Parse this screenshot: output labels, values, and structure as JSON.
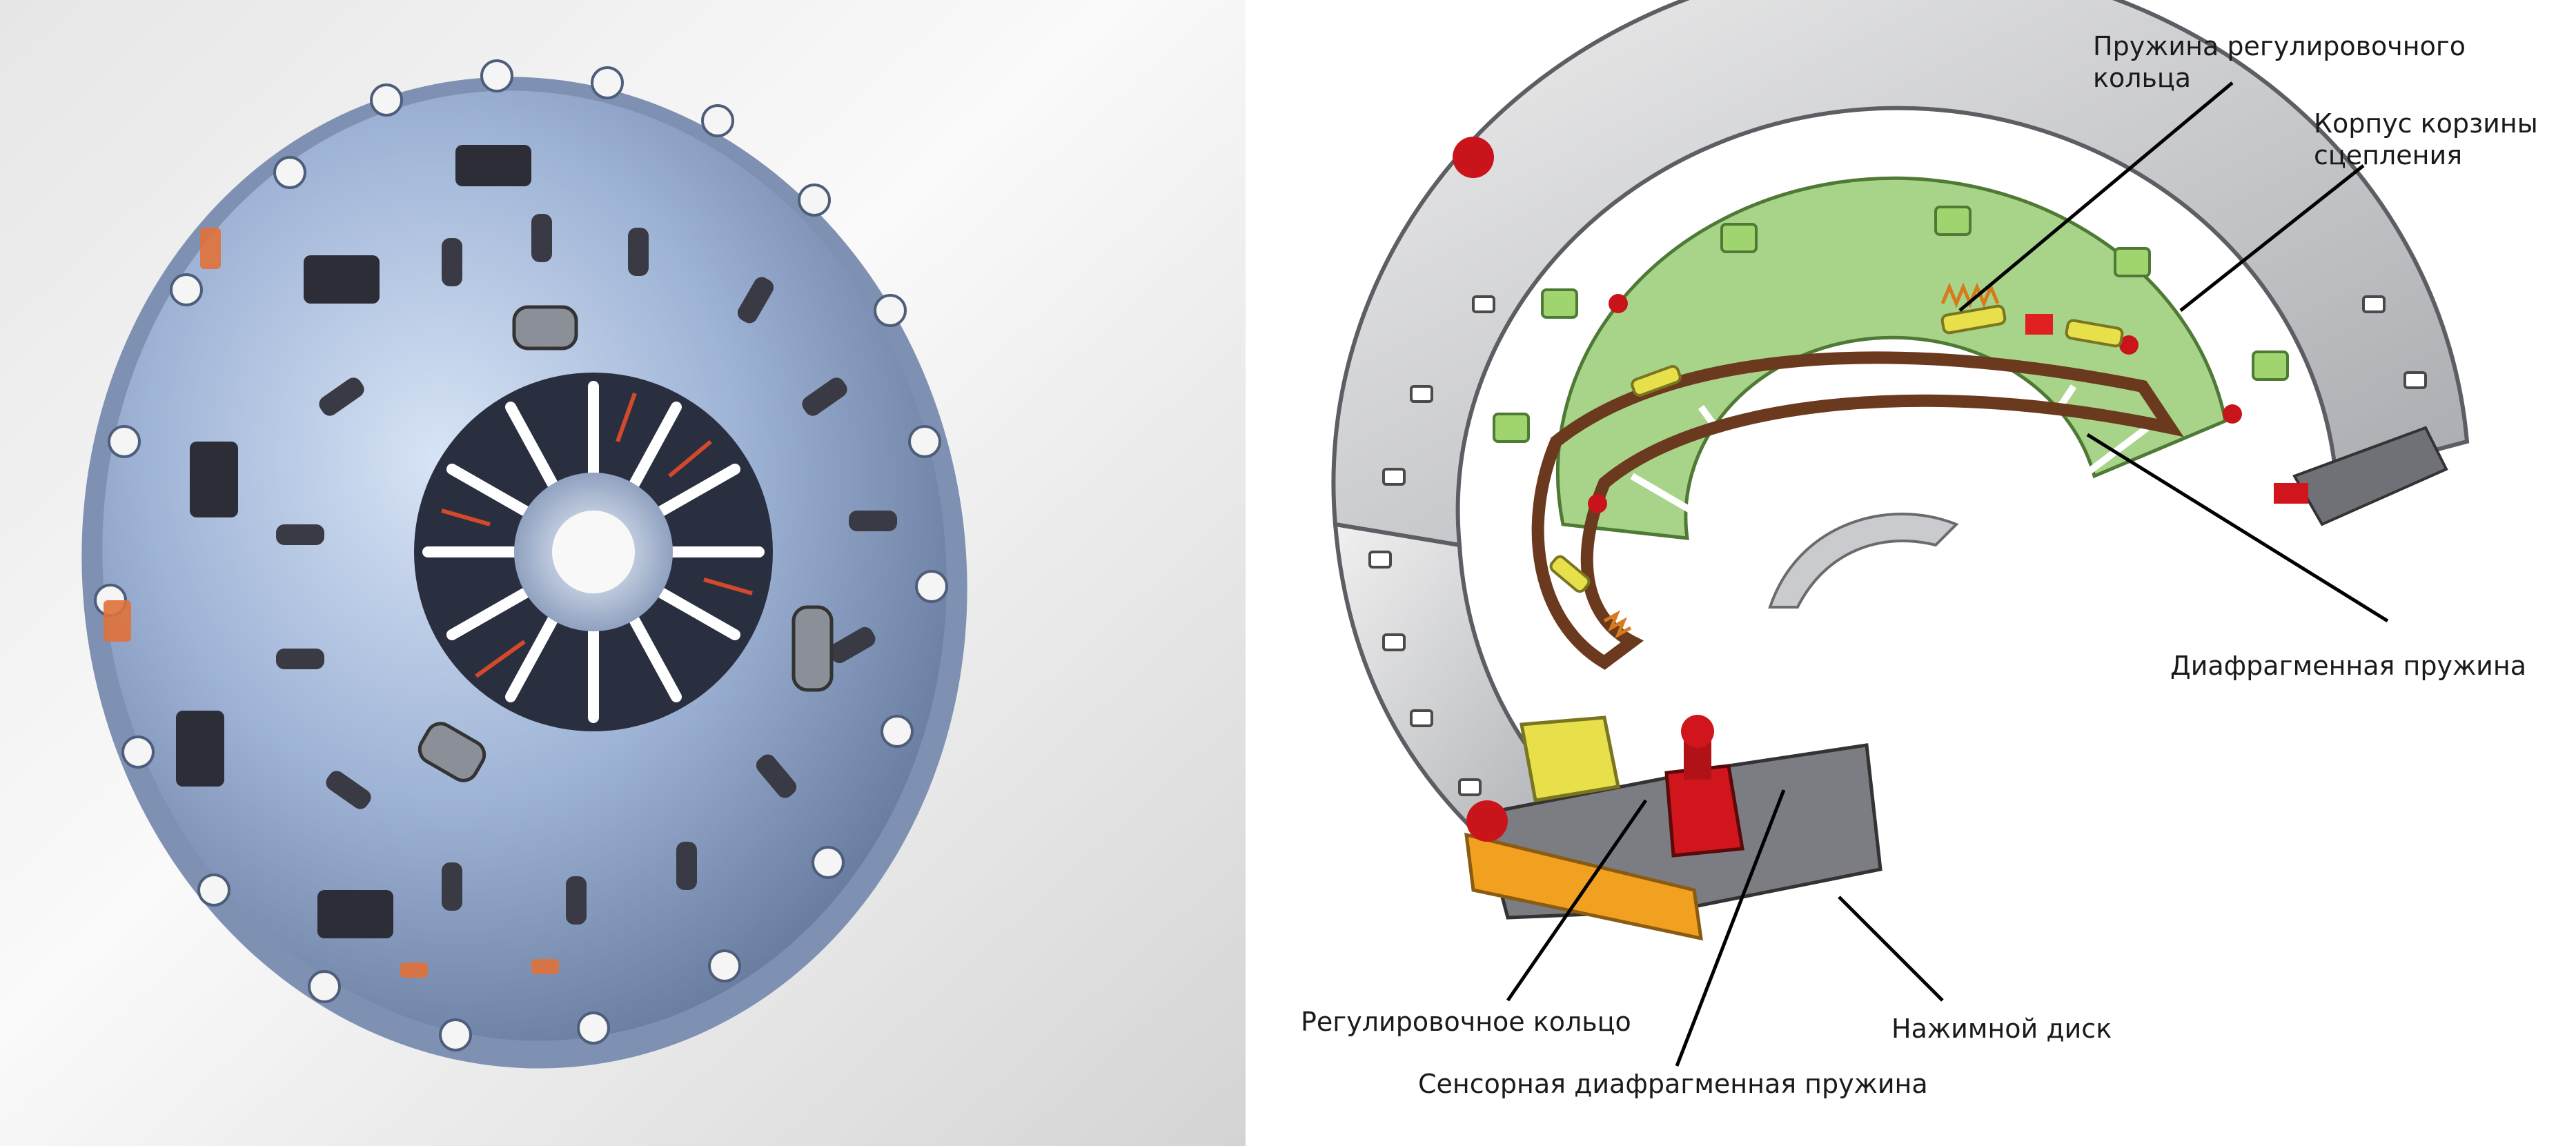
{
  "labels": {
    "adjuster_spring": "Пружина регулировочного\nкольца",
    "clutch_cover": "Корпус корзины\nсцепления",
    "diaphragm_spring": "Диафрагменная пружина",
    "adjusting_ring": "Регулировочное кольцо",
    "pressure_plate": "Нажимной диск",
    "sensor_diaphragm_spring": "Сенсорная диафрагменная пружина"
  },
  "colors": {
    "housing_blue": "#9fb4d6",
    "housing_gray": "#c9cbcf",
    "spring_green": "#a8d48a",
    "frame_brown": "#6b3a1e",
    "accent_red": "#d0151c",
    "ring_orange": "#f2a020",
    "tab_yellow": "#e8e04a"
  }
}
